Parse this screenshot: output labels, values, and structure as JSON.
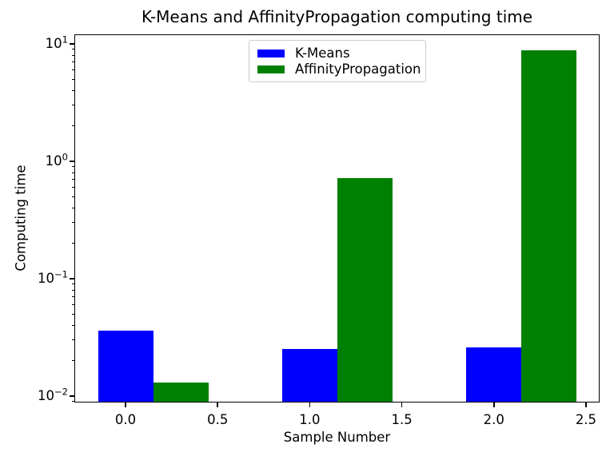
{
  "chart_data": {
    "type": "bar",
    "title": "K-Means and AffinityPropagation computing time",
    "xlabel": "Sample Number",
    "ylabel": "Computing time",
    "yscale": "log",
    "grid": false,
    "categories": [
      0,
      1,
      2
    ],
    "bar_width": 0.3,
    "series": [
      {
        "name": "K-Means",
        "color": "#0000ff",
        "offset": 0.0,
        "values": [
          0.036,
          0.025,
          0.026
        ]
      },
      {
        "name": "AffinityPropagation",
        "color": "#008000",
        "offset": 0.3,
        "values": [
          0.013,
          0.72,
          8.8
        ]
      }
    ],
    "xticks": {
      "values": [
        0.0,
        0.5,
        1.0,
        1.5,
        2.0,
        2.5
      ],
      "labels": [
        "0.0",
        "0.5",
        "1.0",
        "1.5",
        "2.0",
        "2.5"
      ]
    },
    "yticks": {
      "base": "10",
      "exponents": [
        1,
        0,
        -1,
        -2
      ]
    },
    "xlim": [
      -0.278,
      2.574
    ],
    "ylim": [
      0.0088,
      12.1
    ],
    "legend": {
      "position": "upper center",
      "entries": [
        "K-Means",
        "AffinityPropagation"
      ]
    }
  }
}
